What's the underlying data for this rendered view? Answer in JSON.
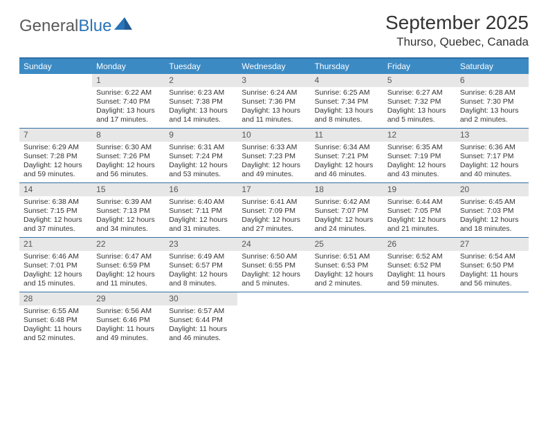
{
  "logo": {
    "word1": "General",
    "word2": "Blue"
  },
  "header": {
    "title": "September 2025",
    "subtitle": "Thurso, Quebec, Canada"
  },
  "colors": {
    "header_bar": "#3b8ac4",
    "header_text": "#ffffff",
    "rule": "#2f6da3",
    "daynum_bg": "#e7e7e7",
    "daynum_text": "#555555",
    "body_text": "#333333",
    "logo_gray": "#5a5a5a",
    "logo_blue": "#2a74b8",
    "logo_mark": "#2a74b8"
  },
  "typography": {
    "title_fontsize": 28,
    "subtitle_fontsize": 17,
    "weekday_fontsize": 12,
    "daynum_fontsize": 12,
    "cell_fontsize": 10.5,
    "logo_fontsize": 24
  },
  "calendar": {
    "type": "table",
    "weekdays": [
      "Sunday",
      "Monday",
      "Tuesday",
      "Wednesday",
      "Thursday",
      "Friday",
      "Saturday"
    ],
    "weeks": [
      [
        {
          "empty": true
        },
        {
          "day": "1",
          "sunrise": "Sunrise: 6:22 AM",
          "sunset": "Sunset: 7:40 PM",
          "daylight": "Daylight: 13 hours and 17 minutes."
        },
        {
          "day": "2",
          "sunrise": "Sunrise: 6:23 AM",
          "sunset": "Sunset: 7:38 PM",
          "daylight": "Daylight: 13 hours and 14 minutes."
        },
        {
          "day": "3",
          "sunrise": "Sunrise: 6:24 AM",
          "sunset": "Sunset: 7:36 PM",
          "daylight": "Daylight: 13 hours and 11 minutes."
        },
        {
          "day": "4",
          "sunrise": "Sunrise: 6:25 AM",
          "sunset": "Sunset: 7:34 PM",
          "daylight": "Daylight: 13 hours and 8 minutes."
        },
        {
          "day": "5",
          "sunrise": "Sunrise: 6:27 AM",
          "sunset": "Sunset: 7:32 PM",
          "daylight": "Daylight: 13 hours and 5 minutes."
        },
        {
          "day": "6",
          "sunrise": "Sunrise: 6:28 AM",
          "sunset": "Sunset: 7:30 PM",
          "daylight": "Daylight: 13 hours and 2 minutes."
        }
      ],
      [
        {
          "day": "7",
          "sunrise": "Sunrise: 6:29 AM",
          "sunset": "Sunset: 7:28 PM",
          "daylight": "Daylight: 12 hours and 59 minutes."
        },
        {
          "day": "8",
          "sunrise": "Sunrise: 6:30 AM",
          "sunset": "Sunset: 7:26 PM",
          "daylight": "Daylight: 12 hours and 56 minutes."
        },
        {
          "day": "9",
          "sunrise": "Sunrise: 6:31 AM",
          "sunset": "Sunset: 7:24 PM",
          "daylight": "Daylight: 12 hours and 53 minutes."
        },
        {
          "day": "10",
          "sunrise": "Sunrise: 6:33 AM",
          "sunset": "Sunset: 7:23 PM",
          "daylight": "Daylight: 12 hours and 49 minutes."
        },
        {
          "day": "11",
          "sunrise": "Sunrise: 6:34 AM",
          "sunset": "Sunset: 7:21 PM",
          "daylight": "Daylight: 12 hours and 46 minutes."
        },
        {
          "day": "12",
          "sunrise": "Sunrise: 6:35 AM",
          "sunset": "Sunset: 7:19 PM",
          "daylight": "Daylight: 12 hours and 43 minutes."
        },
        {
          "day": "13",
          "sunrise": "Sunrise: 6:36 AM",
          "sunset": "Sunset: 7:17 PM",
          "daylight": "Daylight: 12 hours and 40 minutes."
        }
      ],
      [
        {
          "day": "14",
          "sunrise": "Sunrise: 6:38 AM",
          "sunset": "Sunset: 7:15 PM",
          "daylight": "Daylight: 12 hours and 37 minutes."
        },
        {
          "day": "15",
          "sunrise": "Sunrise: 6:39 AM",
          "sunset": "Sunset: 7:13 PM",
          "daylight": "Daylight: 12 hours and 34 minutes."
        },
        {
          "day": "16",
          "sunrise": "Sunrise: 6:40 AM",
          "sunset": "Sunset: 7:11 PM",
          "daylight": "Daylight: 12 hours and 31 minutes."
        },
        {
          "day": "17",
          "sunrise": "Sunrise: 6:41 AM",
          "sunset": "Sunset: 7:09 PM",
          "daylight": "Daylight: 12 hours and 27 minutes."
        },
        {
          "day": "18",
          "sunrise": "Sunrise: 6:42 AM",
          "sunset": "Sunset: 7:07 PM",
          "daylight": "Daylight: 12 hours and 24 minutes."
        },
        {
          "day": "19",
          "sunrise": "Sunrise: 6:44 AM",
          "sunset": "Sunset: 7:05 PM",
          "daylight": "Daylight: 12 hours and 21 minutes."
        },
        {
          "day": "20",
          "sunrise": "Sunrise: 6:45 AM",
          "sunset": "Sunset: 7:03 PM",
          "daylight": "Daylight: 12 hours and 18 minutes."
        }
      ],
      [
        {
          "day": "21",
          "sunrise": "Sunrise: 6:46 AM",
          "sunset": "Sunset: 7:01 PM",
          "daylight": "Daylight: 12 hours and 15 minutes."
        },
        {
          "day": "22",
          "sunrise": "Sunrise: 6:47 AM",
          "sunset": "Sunset: 6:59 PM",
          "daylight": "Daylight: 12 hours and 11 minutes."
        },
        {
          "day": "23",
          "sunrise": "Sunrise: 6:49 AM",
          "sunset": "Sunset: 6:57 PM",
          "daylight": "Daylight: 12 hours and 8 minutes."
        },
        {
          "day": "24",
          "sunrise": "Sunrise: 6:50 AM",
          "sunset": "Sunset: 6:55 PM",
          "daylight": "Daylight: 12 hours and 5 minutes."
        },
        {
          "day": "25",
          "sunrise": "Sunrise: 6:51 AM",
          "sunset": "Sunset: 6:53 PM",
          "daylight": "Daylight: 12 hours and 2 minutes."
        },
        {
          "day": "26",
          "sunrise": "Sunrise: 6:52 AM",
          "sunset": "Sunset: 6:52 PM",
          "daylight": "Daylight: 11 hours and 59 minutes."
        },
        {
          "day": "27",
          "sunrise": "Sunrise: 6:54 AM",
          "sunset": "Sunset: 6:50 PM",
          "daylight": "Daylight: 11 hours and 56 minutes."
        }
      ],
      [
        {
          "day": "28",
          "sunrise": "Sunrise: 6:55 AM",
          "sunset": "Sunset: 6:48 PM",
          "daylight": "Daylight: 11 hours and 52 minutes."
        },
        {
          "day": "29",
          "sunrise": "Sunrise: 6:56 AM",
          "sunset": "Sunset: 6:46 PM",
          "daylight": "Daylight: 11 hours and 49 minutes."
        },
        {
          "day": "30",
          "sunrise": "Sunrise: 6:57 AM",
          "sunset": "Sunset: 6:44 PM",
          "daylight": "Daylight: 11 hours and 46 minutes."
        },
        {
          "empty": true
        },
        {
          "empty": true
        },
        {
          "empty": true
        },
        {
          "empty": true
        }
      ]
    ]
  }
}
